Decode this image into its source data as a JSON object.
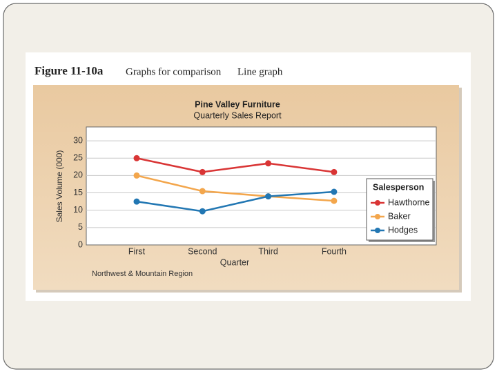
{
  "figure": {
    "label": "Figure 11-10a",
    "caption": "Graphs for comparison",
    "kind": "Line graph"
  },
  "chart_data": {
    "type": "line",
    "title": "Pine Valley Furniture",
    "subtitle": "Quarterly Sales Report",
    "x_label": "Quarter",
    "y_label": "Sales Volume (000)",
    "note": "Northwest & Mountain Region",
    "categories": [
      "First",
      "Second",
      "Third",
      "Fourth"
    ],
    "series": [
      {
        "name": "Hawthorne",
        "color": "#d93535",
        "values": [
          25,
          21,
          23.5,
          21
        ]
      },
      {
        "name": "Baker",
        "color": "#f3a64c",
        "values": [
          20,
          15.5,
          14,
          12.7
        ]
      },
      {
        "name": "Hodges",
        "color": "#2277b3",
        "values": [
          12.5,
          9.7,
          14,
          15.3
        ]
      }
    ],
    "ylim": [
      0,
      34
    ],
    "yticks": [
      0,
      5,
      10,
      15,
      20,
      25,
      30
    ],
    "grid": true,
    "legend_title": "Salesperson",
    "legend_position": "right"
  }
}
